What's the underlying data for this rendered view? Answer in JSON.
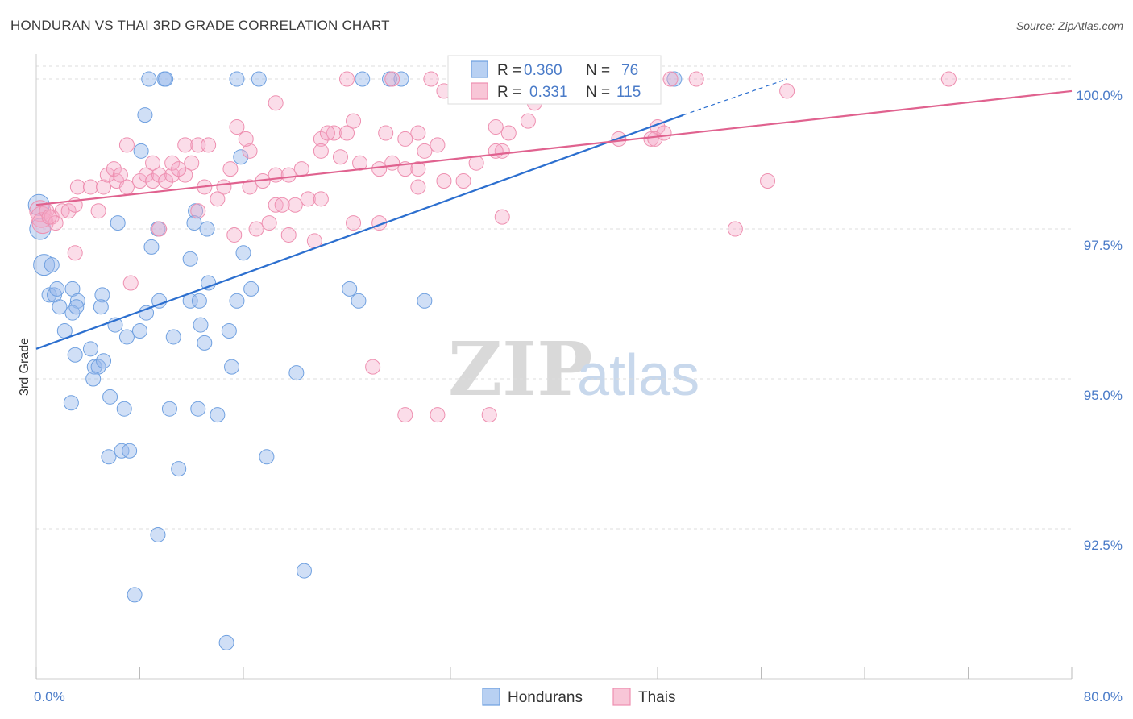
{
  "header": {
    "title": "HONDURAN VS THAI 3RD GRADE CORRELATION CHART",
    "source": "Source: ZipAtlas.com"
  },
  "watermark": {
    "zip": "ZIP",
    "atlas": "atlas"
  },
  "colors": {
    "blue": "#6fa0e0",
    "blue_line": "#2c6fcf",
    "pink": "#ee8fb0",
    "pink_line": "#e0628f",
    "tick_text": "#4a7bc8",
    "grid": "#dddddd"
  },
  "legend_top": {
    "rows": [
      {
        "r_label": "R = ",
        "r_value": "0.360",
        "n_label": "N = ",
        "n_value": "76",
        "color": "blue"
      },
      {
        "r_label": "R = ",
        "r_value": "0.331",
        "n_label": "N = ",
        "n_value": "115",
        "color": "pink"
      }
    ]
  },
  "legend_bottom": {
    "items": [
      "Hondurans",
      "Thais"
    ]
  },
  "chart_data": {
    "type": "scatter",
    "title": "HONDURAN VS THAI 3RD GRADE CORRELATION CHART",
    "xlabel": "",
    "ylabel": "3rd Grade",
    "xlim": [
      0,
      80
    ],
    "ylim": [
      90.0,
      100.35
    ],
    "x_tick_labels": [
      "0.0%",
      "80.0%"
    ],
    "y_ticks": [
      92.5,
      95.0,
      97.5,
      100.0
    ],
    "y_tick_labels": [
      "92.5%",
      "95.0%",
      "97.5%",
      "100.0%"
    ],
    "grid": true,
    "legend_position": "top-center",
    "series": [
      {
        "name": "Hondurans",
        "color": "blue",
        "R": 0.36,
        "N": 76,
        "trend": {
          "x0": 0,
          "y0": 95.5,
          "x1": 50,
          "y1": 99.4,
          "dashed_to_x": 58,
          "dashed_to_y": 100.0
        },
        "points": [
          [
            0.2,
            97.9
          ],
          [
            0.3,
            97.5
          ],
          [
            0.6,
            96.9
          ],
          [
            1.2,
            96.9
          ],
          [
            1.0,
            96.4
          ],
          [
            1.4,
            96.4
          ],
          [
            1.6,
            96.5
          ],
          [
            1.8,
            96.2
          ],
          [
            2.8,
            96.5
          ],
          [
            3.2,
            96.3
          ],
          [
            2.8,
            96.1
          ],
          [
            3.1,
            96.2
          ],
          [
            5.1,
            96.4
          ],
          [
            5.0,
            96.2
          ],
          [
            2.2,
            95.8
          ],
          [
            3.0,
            95.4
          ],
          [
            4.2,
            95.5
          ],
          [
            4.5,
            95.2
          ],
          [
            4.8,
            95.2
          ],
          [
            5.2,
            95.3
          ],
          [
            4.4,
            95.0
          ],
          [
            6.1,
            95.9
          ],
          [
            7.0,
            95.7
          ],
          [
            8.0,
            95.8
          ],
          [
            8.5,
            96.1
          ],
          [
            9.5,
            96.3
          ],
          [
            10.6,
            95.7
          ],
          [
            11.9,
            96.3
          ],
          [
            12.7,
            95.9
          ],
          [
            12.6,
            96.3
          ],
          [
            13.3,
            96.6
          ],
          [
            13.0,
            95.6
          ],
          [
            14.9,
            95.8
          ],
          [
            15.5,
            96.3
          ],
          [
            16.6,
            96.5
          ],
          [
            15.1,
            95.2
          ],
          [
            16.0,
            97.1
          ],
          [
            11.9,
            97.0
          ],
          [
            8.9,
            97.2
          ],
          [
            9.4,
            97.5
          ],
          [
            12.3,
            97.8
          ],
          [
            12.2,
            97.6
          ],
          [
            13.2,
            97.5
          ],
          [
            6.3,
            97.6
          ],
          [
            8.1,
            98.8
          ],
          [
            8.4,
            99.4
          ],
          [
            15.8,
            98.7
          ],
          [
            24.2,
            96.5
          ],
          [
            24.9,
            96.3
          ],
          [
            30.0,
            96.3
          ],
          [
            5.7,
            94.7
          ],
          [
            2.7,
            94.6
          ],
          [
            6.8,
            94.5
          ],
          [
            10.3,
            94.5
          ],
          [
            12.5,
            94.5
          ],
          [
            14.0,
            94.4
          ],
          [
            5.6,
            93.7
          ],
          [
            6.6,
            93.8
          ],
          [
            7.2,
            93.8
          ],
          [
            11.0,
            93.5
          ],
          [
            17.8,
            93.7
          ],
          [
            9.4,
            92.4
          ],
          [
            20.7,
            91.8
          ],
          [
            7.6,
            91.4
          ],
          [
            14.7,
            90.6
          ],
          [
            20.1,
            95.1
          ],
          [
            8.7,
            100.0
          ],
          [
            9.9,
            100.0
          ],
          [
            10.0,
            100.0
          ],
          [
            15.5,
            100.0
          ],
          [
            17.2,
            100.0
          ],
          [
            25.2,
            100.0
          ],
          [
            27.3,
            100.0
          ],
          [
            28.2,
            100.0
          ],
          [
            41.7,
            100.0
          ],
          [
            49.3,
            100.0
          ]
        ]
      },
      {
        "name": "Thais",
        "color": "pink",
        "R": 0.331,
        "N": 115,
        "trend": {
          "x0": 0,
          "y0": 97.9,
          "x1": 80,
          "y1": 99.8
        },
        "points": [
          [
            0.3,
            97.8
          ],
          [
            0.4,
            97.7
          ],
          [
            0.5,
            97.6
          ],
          [
            0.8,
            97.8
          ],
          [
            1.2,
            97.7
          ],
          [
            1.5,
            97.6
          ],
          [
            2.0,
            97.8
          ],
          [
            2.5,
            97.8
          ],
          [
            3.0,
            97.9
          ],
          [
            1.0,
            97.7
          ],
          [
            4.8,
            97.8
          ],
          [
            3.2,
            98.2
          ],
          [
            4.2,
            98.2
          ],
          [
            5.2,
            98.2
          ],
          [
            6.2,
            98.3
          ],
          [
            7.0,
            98.2
          ],
          [
            3.0,
            97.1
          ],
          [
            5.5,
            98.4
          ],
          [
            6.0,
            98.5
          ],
          [
            6.5,
            98.4
          ],
          [
            8.0,
            98.3
          ],
          [
            8.5,
            98.4
          ],
          [
            9.0,
            98.3
          ],
          [
            9.5,
            98.4
          ],
          [
            10.0,
            98.3
          ],
          [
            10.5,
            98.4
          ],
          [
            11.5,
            98.4
          ],
          [
            9.0,
            98.6
          ],
          [
            10.5,
            98.6
          ],
          [
            12.0,
            98.6
          ],
          [
            7.0,
            98.9
          ],
          [
            11.5,
            98.9
          ],
          [
            12.5,
            98.9
          ],
          [
            13.3,
            98.9
          ],
          [
            11.0,
            98.5
          ],
          [
            13.0,
            98.2
          ],
          [
            14.5,
            98.2
          ],
          [
            14.0,
            98.0
          ],
          [
            12.5,
            97.8
          ],
          [
            9.5,
            97.5
          ],
          [
            15.3,
            97.4
          ],
          [
            17.0,
            97.5
          ],
          [
            18.0,
            97.6
          ],
          [
            16.5,
            98.2
          ],
          [
            17.5,
            98.3
          ],
          [
            18.5,
            98.4
          ],
          [
            19.5,
            98.4
          ],
          [
            20.5,
            98.5
          ],
          [
            15.0,
            98.5
          ],
          [
            16.5,
            98.8
          ],
          [
            16.2,
            99.0
          ],
          [
            15.5,
            99.2
          ],
          [
            18.5,
            99.6
          ],
          [
            22.0,
            99.0
          ],
          [
            23.0,
            99.1
          ],
          [
            22.5,
            99.1
          ],
          [
            24.0,
            99.1
          ],
          [
            24.5,
            99.3
          ],
          [
            22.0,
            98.8
          ],
          [
            23.5,
            98.7
          ],
          [
            25.0,
            98.6
          ],
          [
            26.5,
            98.5
          ],
          [
            27.5,
            98.6
          ],
          [
            28.5,
            98.5
          ],
          [
            29.5,
            98.5
          ],
          [
            30.0,
            98.8
          ],
          [
            31.0,
            98.9
          ],
          [
            28.5,
            99.0
          ],
          [
            29.5,
            99.1
          ],
          [
            27.0,
            99.1
          ],
          [
            18.5,
            97.9
          ],
          [
            19.0,
            97.9
          ],
          [
            20.0,
            97.9
          ],
          [
            21.0,
            98.0
          ],
          [
            22.0,
            98.0
          ],
          [
            19.5,
            97.4
          ],
          [
            21.5,
            97.3
          ],
          [
            24.5,
            97.6
          ],
          [
            26.5,
            97.6
          ],
          [
            29.5,
            98.2
          ],
          [
            31.5,
            98.3
          ],
          [
            33.0,
            98.3
          ],
          [
            34.0,
            98.6
          ],
          [
            35.5,
            99.2
          ],
          [
            36.5,
            99.1
          ],
          [
            38.0,
            99.3
          ],
          [
            38.5,
            99.6
          ],
          [
            36.0,
            98.8
          ],
          [
            35.5,
            98.8
          ],
          [
            37.5,
            99.8
          ],
          [
            38.0,
            100.0
          ],
          [
            32.5,
            100.0
          ],
          [
            33.5,
            100.0
          ],
          [
            35.5,
            100.0
          ],
          [
            24.0,
            100.0
          ],
          [
            27.5,
            100.0
          ],
          [
            30.5,
            100.0
          ],
          [
            31.5,
            99.8
          ],
          [
            47.5,
            99.0
          ],
          [
            48.0,
            99.2
          ],
          [
            47.8,
            99.0
          ],
          [
            45.0,
            99.0
          ],
          [
            48.5,
            99.1
          ],
          [
            49.0,
            100.0
          ],
          [
            51.0,
            100.0
          ],
          [
            54.0,
            97.5
          ],
          [
            56.5,
            98.3
          ],
          [
            58.0,
            99.8
          ],
          [
            70.5,
            100.0
          ],
          [
            36.0,
            97.7
          ],
          [
            26.0,
            95.2
          ],
          [
            28.5,
            94.4
          ],
          [
            31.0,
            94.4
          ],
          [
            35.0,
            94.4
          ],
          [
            7.3,
            96.6
          ]
        ]
      }
    ]
  }
}
